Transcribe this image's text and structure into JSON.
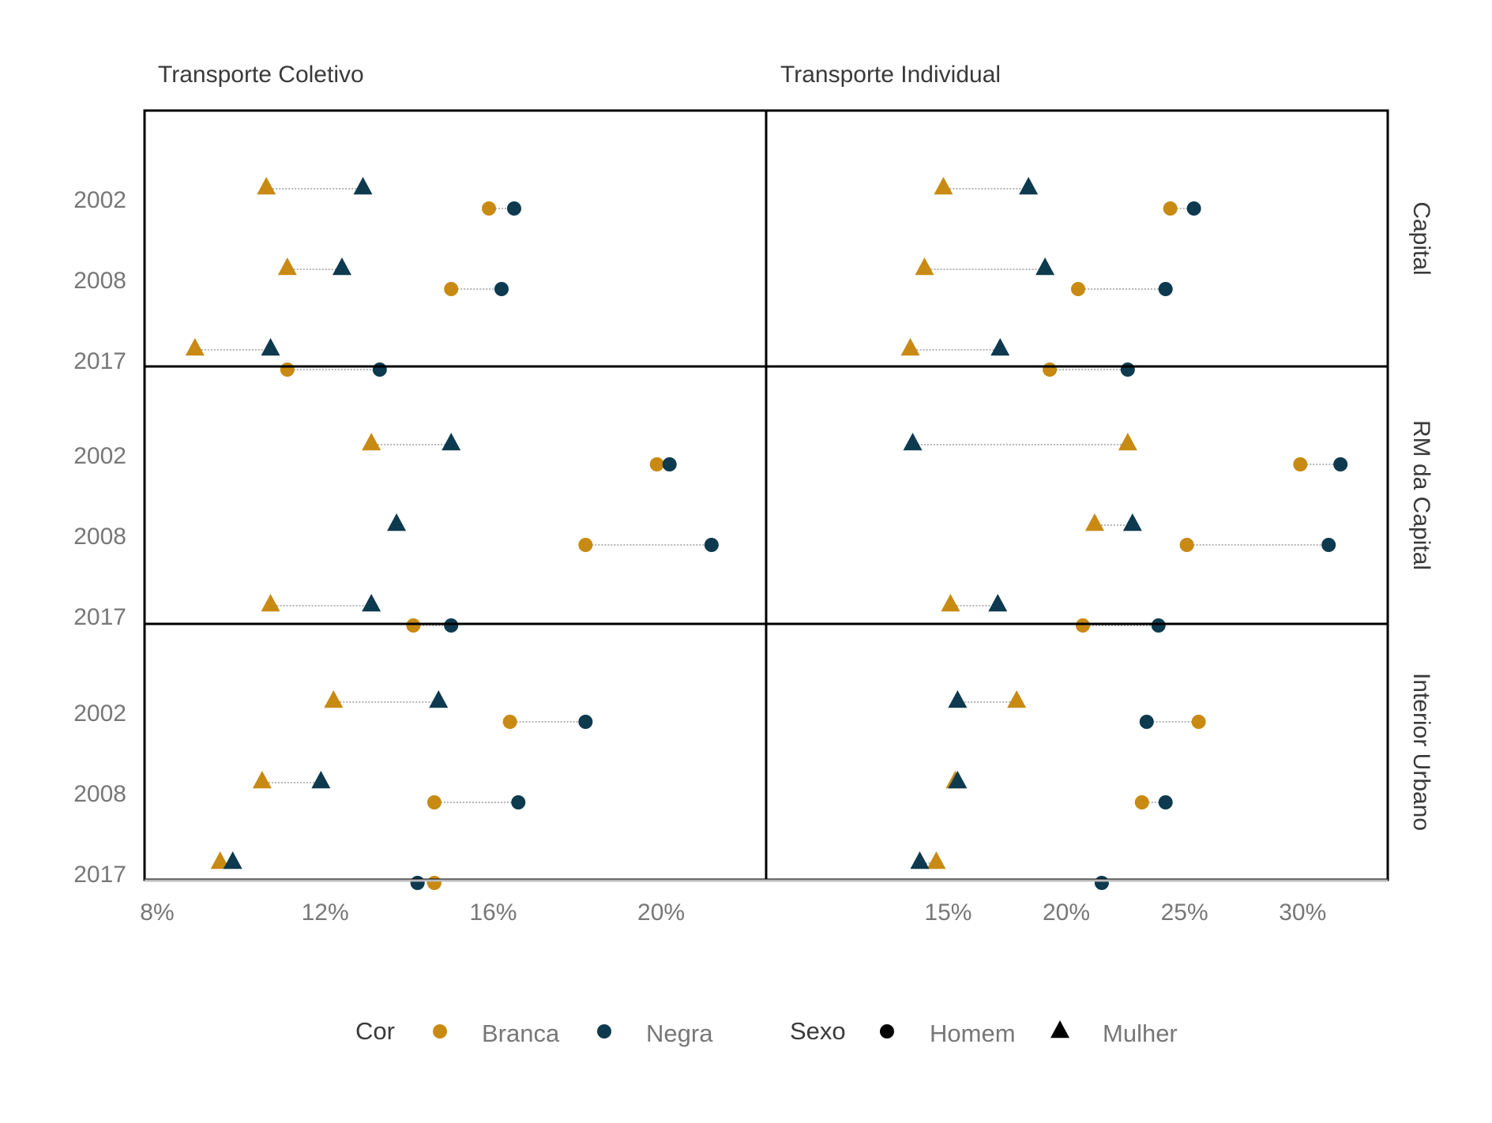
{
  "chart_data": {
    "type": "scatter",
    "subtype": "faceted dumbbell",
    "grid": false,
    "legend_position": "bottom",
    "colors": {
      "Branca": "#C88A12",
      "Negra": "#0D3A4F",
      "connector": "#888888"
    },
    "facet_columns": [
      "Transporte Coletivo",
      "Transporte Individual"
    ],
    "facet_rows": [
      "Capital",
      "RM da Capital",
      "Interior Urbano"
    ],
    "years": [
      "2002",
      "2008",
      "2017"
    ],
    "xaxes": {
      "Transporte Coletivo": {
        "ticks": [
          8,
          12,
          16,
          20
        ],
        "tick_labels": [
          "8%",
          "12%",
          "16%",
          "20%"
        ],
        "xlim": [
          7.7,
          22.5
        ]
      },
      "Transporte Individual": {
        "ticks": [
          15,
          20,
          25,
          30
        ],
        "tick_labels": [
          "15%",
          "20%",
          "25%",
          "30%"
        ],
        "xlim": [
          7.3,
          33.6
        ]
      }
    },
    "legend": {
      "cor_title": "Cor",
      "cor_items": [
        "Branca",
        "Negra"
      ],
      "sexo_title": "Sexo",
      "sexo_items": [
        "Homem",
        "Mulher"
      ]
    },
    "panels": [
      {
        "col": "Transporte Coletivo",
        "row": "Capital",
        "data": [
          {
            "year": "2002",
            "Mulher": {
              "Branca": 10.6,
              "Negra": 12.9
            },
            "Homem": {
              "Branca": 15.9,
              "Negra": 16.5
            }
          },
          {
            "year": "2008",
            "Mulher": {
              "Branca": 11.1,
              "Negra": 12.4
            },
            "Homem": {
              "Branca": 15.0,
              "Negra": 16.2
            }
          },
          {
            "year": "2017",
            "Mulher": {
              "Branca": 8.9,
              "Negra": 10.7
            },
            "Homem": {
              "Branca": 11.1,
              "Negra": 13.3
            }
          }
        ]
      },
      {
        "col": "Transporte Individual",
        "row": "Capital",
        "data": [
          {
            "year": "2002",
            "Mulher": {
              "Branca": 14.8,
              "Negra": 18.4
            },
            "Homem": {
              "Branca": 24.4,
              "Negra": 25.4
            }
          },
          {
            "year": "2008",
            "Mulher": {
              "Branca": 14.0,
              "Negra": 19.1
            },
            "Homem": {
              "Branca": 20.5,
              "Negra": 24.2
            }
          },
          {
            "year": "2017",
            "Mulher": {
              "Branca": 13.4,
              "Negra": 17.2
            },
            "Homem": {
              "Branca": 19.3,
              "Negra": 22.6
            }
          }
        ]
      },
      {
        "col": "Transporte Coletivo",
        "row": "RM da Capital",
        "data": [
          {
            "year": "2002",
            "Mulher": {
              "Branca": 13.1,
              "Negra": 15.0
            },
            "Homem": {
              "Branca": 19.9,
              "Negra": 20.2
            }
          },
          {
            "year": "2008",
            "Mulher": {
              "Branca": null,
              "Negra": 13.7
            },
            "Homem": {
              "Branca": 18.2,
              "Negra": 21.2
            }
          },
          {
            "year": "2017",
            "Mulher": {
              "Branca": 10.7,
              "Negra": 13.1
            },
            "Homem": {
              "Branca": 14.1,
              "Negra": 15.0
            }
          }
        ]
      },
      {
        "col": "Transporte Individual",
        "row": "RM da Capital",
        "data": [
          {
            "year": "2002",
            "Mulher": {
              "Branca": 22.6,
              "Negra": 13.5
            },
            "Homem": {
              "Branca": 29.9,
              "Negra": 31.6
            }
          },
          {
            "year": "2008",
            "Mulher": {
              "Branca": 21.2,
              "Negra": 22.8
            },
            "Homem": {
              "Branca": 25.1,
              "Negra": 31.1
            }
          },
          {
            "year": "2017",
            "Mulher": {
              "Branca": 15.1,
              "Negra": 17.1
            },
            "Homem": {
              "Branca": 20.7,
              "Negra": 23.9
            }
          }
        ]
      },
      {
        "col": "Transporte Coletivo",
        "row": "Interior Urbano",
        "data": [
          {
            "year": "2002",
            "Mulher": {
              "Branca": 12.2,
              "Negra": 14.7
            },
            "Homem": {
              "Branca": 16.4,
              "Negra": 18.2
            }
          },
          {
            "year": "2008",
            "Mulher": {
              "Branca": 10.5,
              "Negra": 11.9
            },
            "Homem": {
              "Branca": 14.6,
              "Negra": 16.6
            }
          },
          {
            "year": "2017",
            "Mulher": {
              "Branca": 9.5,
              "Negra": 9.8
            },
            "Homem": {
              "Branca": 14.6,
              "Negra": 14.2
            }
          }
        ]
      },
      {
        "col": "Transporte Individual",
        "row": "Interior Urbano",
        "data": [
          {
            "year": "2002",
            "Mulher": {
              "Branca": 17.9,
              "Negra": 15.4
            },
            "Homem": {
              "Branca": 25.6,
              "Negra": 23.4
            }
          },
          {
            "year": "2008",
            "Mulher": {
              "Branca": 15.3,
              "Negra": 15.4
            },
            "Homem": {
              "Branca": 23.2,
              "Negra": 24.2
            }
          },
          {
            "year": "2017",
            "Mulher": {
              "Branca": 14.5,
              "Negra": 13.8
            },
            "Homem": {
              "Branca": null,
              "Negra": 21.5
            }
          }
        ]
      }
    ]
  }
}
